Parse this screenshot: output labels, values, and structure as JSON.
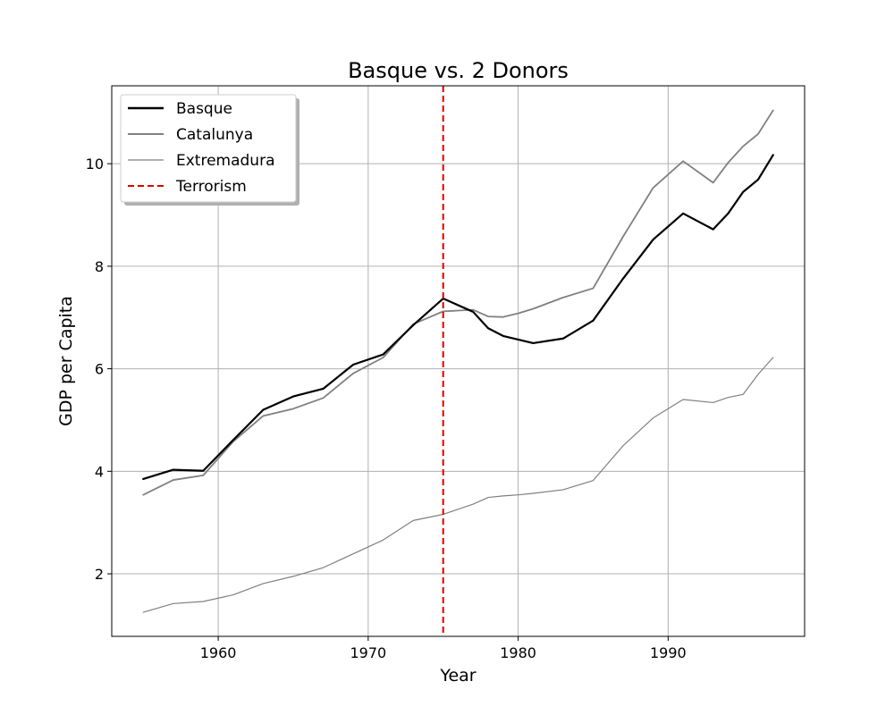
{
  "chart_data": {
    "type": "line",
    "title": "Basque vs. 2 Donors",
    "xlabel": "Year",
    "ylabel": "GDP per Capita",
    "xlim": [
      1952.9,
      1999.1
    ],
    "ylim": [
      0.78,
      11.52
    ],
    "xticks": [
      1960,
      1970,
      1980,
      1990
    ],
    "yticks": [
      2,
      4,
      6,
      8,
      10
    ],
    "grid": true,
    "legend_position": "top-left",
    "x": [
      1955,
      1957,
      1959,
      1961,
      1963,
      1965,
      1967,
      1969,
      1971,
      1973,
      1975,
      1977,
      1978,
      1979,
      1980,
      1981,
      1983,
      1985,
      1987,
      1989,
      1991,
      1993,
      1994,
      1995,
      1996,
      1997
    ],
    "series": [
      {
        "name": "Basque",
        "color": "#000000",
        "linewidth": 2.2,
        "style": "solid",
        "values": [
          3.85,
          4.03,
          4.01,
          4.61,
          5.2,
          5.46,
          5.61,
          6.08,
          6.28,
          6.85,
          7.37,
          7.11,
          6.79,
          6.64,
          6.57,
          6.5,
          6.59,
          6.94,
          7.76,
          8.52,
          9.03,
          8.72,
          9.03,
          9.45,
          9.69,
          10.17
        ]
      },
      {
        "name": "Catalunya",
        "color": "#808080",
        "linewidth": 1.8,
        "style": "solid",
        "values": [
          3.54,
          3.83,
          3.92,
          4.58,
          5.08,
          5.22,
          5.43,
          5.91,
          6.22,
          6.87,
          7.12,
          7.15,
          7.02,
          7.01,
          7.08,
          7.17,
          7.39,
          7.57,
          8.58,
          9.53,
          10.05,
          9.63,
          10.02,
          10.34,
          10.58,
          11.04
        ]
      },
      {
        "name": "Extremadura",
        "color": "#808080",
        "linewidth": 1.2,
        "style": "solid",
        "values": [
          1.25,
          1.42,
          1.46,
          1.59,
          1.81,
          1.95,
          2.12,
          2.39,
          2.66,
          3.04,
          3.16,
          3.36,
          3.49,
          3.52,
          3.54,
          3.57,
          3.64,
          3.82,
          4.5,
          5.04,
          5.4,
          5.34,
          5.44,
          5.5,
          5.89,
          6.22
        ]
      }
    ],
    "vlines": [
      {
        "name": "Terrorism",
        "x": 1975,
        "color": "#dd0000",
        "style": "dashed"
      }
    ]
  }
}
